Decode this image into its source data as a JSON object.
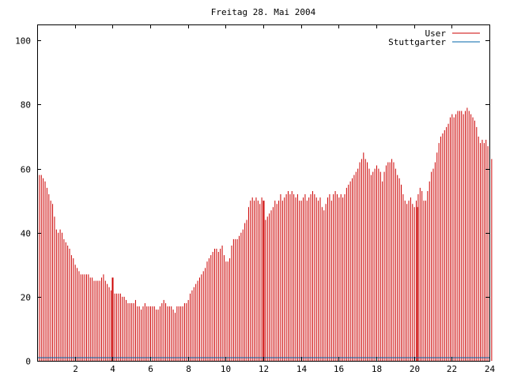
{
  "chart_data": {
    "type": "bar",
    "title": "Freitag 28. Mai 2004",
    "xlabel": "",
    "ylabel": "",
    "xlim": [
      0,
      24
    ],
    "ylim": [
      0,
      105
    ],
    "x_ticks": [
      2,
      4,
      6,
      8,
      10,
      12,
      14,
      16,
      18,
      20,
      22,
      24
    ],
    "y_ticks": [
      0,
      20,
      40,
      60,
      80,
      100
    ],
    "grid": false,
    "legend_position": "top-right",
    "sample_interval_hours": 0.1,
    "series": [
      {
        "name": "User",
        "color": "#cc0000",
        "values": [
          63,
          58,
          58,
          57,
          56,
          54,
          52,
          50,
          49,
          45,
          41,
          40,
          41,
          40,
          38,
          37,
          36,
          35,
          33,
          32,
          30,
          29,
          28,
          27,
          27,
          27,
          27,
          27,
          26,
          26,
          25,
          25,
          25,
          25,
          26,
          27,
          25,
          24,
          23,
          22,
          22,
          21,
          21,
          21,
          21,
          20,
          20,
          19,
          18,
          18,
          18,
          18,
          19,
          17,
          17,
          16,
          17,
          18,
          17,
          17,
          17,
          17,
          17,
          16,
          16,
          17,
          18,
          19,
          18,
          17,
          17,
          17,
          16,
          15,
          17,
          17,
          17,
          17,
          18,
          18,
          19,
          21,
          22,
          23,
          24,
          25,
          26,
          27,
          28,
          29,
          31,
          32,
          33,
          34,
          35,
          35,
          34,
          35,
          36,
          33,
          31,
          31,
          32,
          36,
          38,
          38,
          38,
          39,
          40,
          41,
          43,
          44,
          48,
          50,
          51,
          50,
          51,
          50,
          49,
          51,
          45,
          44,
          45,
          46,
          47,
          48,
          50,
          49,
          50,
          52,
          50,
          51,
          52,
          53,
          52,
          53,
          52,
          51,
          52,
          50,
          50,
          51,
          52,
          50,
          51,
          52,
          53,
          52,
          51,
          50,
          51,
          48,
          47,
          49,
          51,
          52,
          50,
          52,
          53,
          52,
          51,
          52,
          51,
          52,
          54,
          55,
          56,
          57,
          58,
          59,
          60,
          62,
          63,
          65,
          63,
          62,
          60,
          58,
          59,
          60,
          61,
          60,
          59,
          56,
          59,
          61,
          62,
          62,
          63,
          62,
          60,
          58,
          57,
          55,
          52,
          50,
          49,
          50,
          51,
          49,
          48,
          50,
          52,
          54,
          53,
          50,
          50,
          53,
          56,
          59,
          60,
          62,
          65,
          68,
          70,
          71,
          72,
          73,
          74,
          76,
          77,
          76,
          77,
          78,
          78,
          78,
          77,
          78,
          79,
          78,
          77,
          76,
          75,
          73,
          70,
          68,
          69,
          68,
          69,
          67,
          68,
          63
        ],
        "spikes": [
          {
            "x": 4.0,
            "value": 26
          },
          {
            "x": 12.0,
            "value": 50
          },
          {
            "x": 20.2,
            "value": 48
          }
        ]
      },
      {
        "name": "Stuttgarter",
        "color": "#0066aa",
        "values": [
          1,
          1
        ],
        "x": [
          0,
          24
        ]
      }
    ]
  }
}
